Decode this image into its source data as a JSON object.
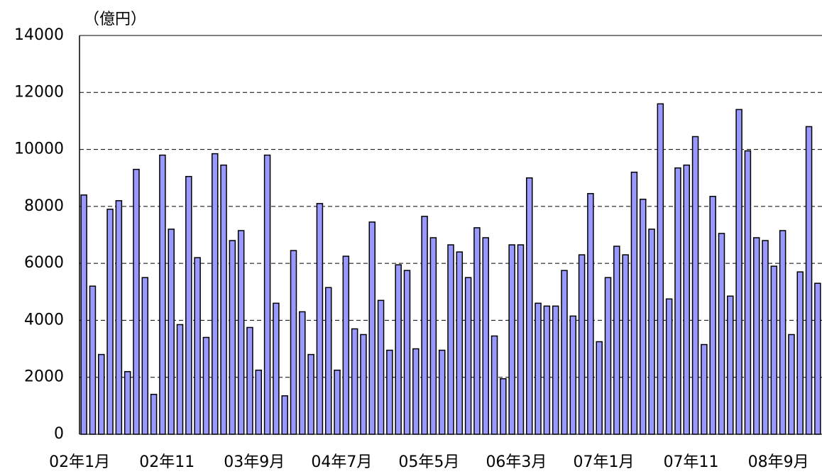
{
  "chart_data": {
    "type": "bar",
    "y_label": "（億円）",
    "categories": [
      "02年1月",
      null,
      null,
      null,
      null,
      null,
      null,
      null,
      null,
      null,
      "02年11",
      null,
      null,
      null,
      null,
      null,
      null,
      null,
      null,
      null,
      "03年9月",
      null,
      null,
      null,
      null,
      null,
      null,
      null,
      null,
      null,
      "04年7月",
      null,
      null,
      null,
      null,
      null,
      null,
      null,
      null,
      null,
      "05年5月",
      null,
      null,
      null,
      null,
      null,
      null,
      null,
      null,
      null,
      "06年3月",
      null,
      null,
      null,
      null,
      null,
      null,
      null,
      null,
      null,
      "07年1月",
      null,
      null,
      null,
      null,
      null,
      null,
      null,
      null,
      null,
      "07年11",
      null,
      null,
      null,
      null,
      null,
      null,
      null,
      null,
      null,
      "08年9月",
      null,
      null,
      null,
      null
    ],
    "values": [
      8400,
      5200,
      2800,
      7900,
      8200,
      2200,
      9300,
      5500,
      1400,
      9800,
      7200,
      3850,
      9050,
      6200,
      3400,
      9850,
      9450,
      6800,
      7150,
      3750,
      2250,
      9800,
      4600,
      1350,
      6450,
      4300,
      2800,
      8100,
      5150,
      2250,
      6250,
      3700,
      3500,
      7450,
      4700,
      2950,
      5950,
      5750,
      3000,
      7650,
      6900,
      2950,
      6650,
      6400,
      5500,
      7250,
      6900,
      3450,
      1950,
      6650,
      6650,
      9000,
      4600,
      4500,
      4500,
      5750,
      4150,
      6300,
      8450,
      3250,
      5500,
      6600,
      6300,
      9200,
      8250,
      7200,
      11600,
      4750,
      9350,
      9450,
      10450,
      3150,
      8350,
      7050,
      4850,
      11400,
      9950,
      6900,
      6800,
      5900,
      7150,
      3500,
      5700,
      10800,
      5300
    ],
    "color": "#9999ff",
    "ylim": [
      0,
      14000
    ],
    "yticks": [
      0,
      2000,
      4000,
      6000,
      8000,
      10000,
      12000,
      14000
    ],
    "grid": true
  }
}
